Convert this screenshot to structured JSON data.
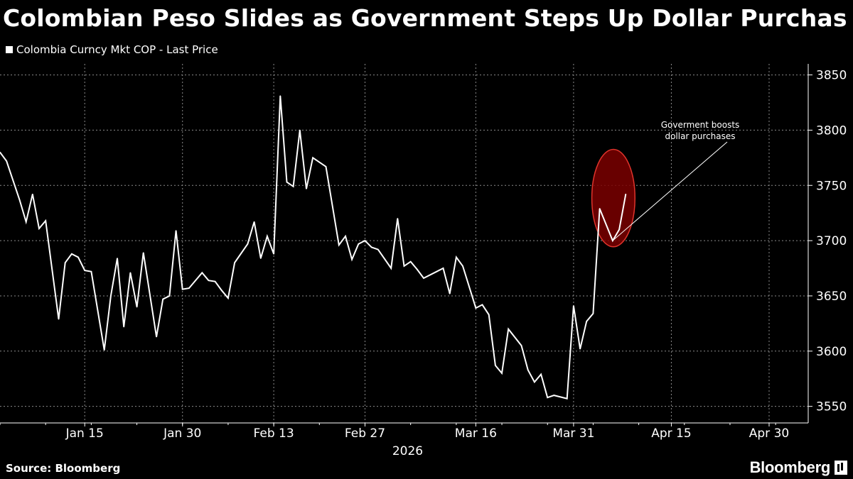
{
  "header": {
    "title": "Colombian Peso Slides as Government Steps Up Dollar Purchas"
  },
  "legend": {
    "label": "Colombia Curncy Mkt COP - Last Price",
    "swatch_color": "#ffffff"
  },
  "footer": {
    "source": "Source: Bloomberg",
    "brand": "Bloomberg"
  },
  "colors": {
    "background": "#000000",
    "line": "#ffffff",
    "grid": "#8a8a8a",
    "annotation_fill": "#7a0000",
    "annotation_stroke": "#e0342c"
  },
  "chart_data": {
    "type": "line",
    "title": "Colombian Peso Slides as Government Steps Up Dollar Purchas",
    "xlabel": "",
    "ylabel": "",
    "year_label": "2026",
    "grid": true,
    "y_axis_side": "right",
    "ylim": [
      3535,
      3860
    ],
    "xlim": [
      "2026-01-02",
      "2026-05-06"
    ],
    "y_ticks": [
      3550,
      3600,
      3650,
      3700,
      3750,
      3800,
      3850
    ],
    "x_ticks": [
      {
        "date": "2026-01-15",
        "label": "Jan 15"
      },
      {
        "date": "2026-01-30",
        "label": "Jan 30"
      },
      {
        "date": "2026-02-13",
        "label": "Feb 13"
      },
      {
        "date": "2026-02-27",
        "label": "Feb 27"
      },
      {
        "date": "2026-03-16",
        "label": "Mar 16"
      },
      {
        "date": "2026-03-31",
        "label": "Mar 31"
      },
      {
        "date": "2026-04-15",
        "label": "Apr 15"
      },
      {
        "date": "2026-04-30",
        "label": "Apr 30"
      }
    ],
    "series": [
      {
        "name": "Colombia Curncy Mkt COP - Last Price",
        "points": [
          [
            "2026-01-02",
            3780
          ],
          [
            "2026-01-03",
            3772
          ],
          [
            "2026-01-05",
            3737
          ],
          [
            "2026-01-06",
            3717
          ],
          [
            "2026-01-07",
            3742
          ],
          [
            "2026-01-08",
            3711
          ],
          [
            "2026-01-09",
            3718
          ],
          [
            "2026-01-11",
            3629
          ],
          [
            "2026-01-12",
            3680
          ],
          [
            "2026-01-13",
            3688
          ],
          [
            "2026-01-14",
            3685
          ],
          [
            "2026-01-15",
            3673
          ],
          [
            "2026-01-16",
            3672
          ],
          [
            "2026-01-18",
            3601
          ],
          [
            "2026-01-19",
            3650
          ],
          [
            "2026-01-20",
            3684
          ],
          [
            "2026-01-21",
            3622
          ],
          [
            "2026-01-22",
            3671
          ],
          [
            "2026-01-23",
            3640
          ],
          [
            "2026-01-24",
            3689
          ],
          [
            "2026-01-26",
            3613
          ],
          [
            "2026-01-27",
            3647
          ],
          [
            "2026-01-28",
            3650
          ],
          [
            "2026-01-29",
            3709
          ],
          [
            "2026-01-30",
            3656
          ],
          [
            "2026-01-31",
            3657
          ],
          [
            "2026-02-02",
            3671
          ],
          [
            "2026-02-03",
            3664
          ],
          [
            "2026-02-04",
            3663
          ],
          [
            "2026-02-05",
            3655
          ],
          [
            "2026-02-06",
            3648
          ],
          [
            "2026-02-07",
            3680
          ],
          [
            "2026-02-09",
            3697
          ],
          [
            "2026-02-10",
            3717
          ],
          [
            "2026-02-11",
            3684
          ],
          [
            "2026-02-12",
            3704
          ],
          [
            "2026-02-13",
            3688
          ],
          [
            "2026-02-14",
            3831
          ],
          [
            "2026-02-15",
            3753
          ],
          [
            "2026-02-16",
            3749
          ],
          [
            "2026-02-17",
            3800
          ],
          [
            "2026-02-18",
            3747
          ],
          [
            "2026-02-19",
            3775
          ],
          [
            "2026-02-20",
            3771
          ],
          [
            "2026-02-21",
            3767
          ],
          [
            "2026-02-23",
            3696
          ],
          [
            "2026-02-24",
            3704
          ],
          [
            "2026-02-25",
            3683
          ],
          [
            "2026-02-26",
            3697
          ],
          [
            "2026-02-27",
            3700
          ],
          [
            "2026-02-28",
            3694
          ],
          [
            "2026-03-01",
            3692
          ],
          [
            "2026-03-03",
            3675
          ],
          [
            "2026-03-04",
            3720
          ],
          [
            "2026-03-05",
            3677
          ],
          [
            "2026-03-06",
            3681
          ],
          [
            "2026-03-07",
            3674
          ],
          [
            "2026-03-08",
            3666
          ],
          [
            "2026-03-10",
            3672
          ],
          [
            "2026-03-11",
            3675
          ],
          [
            "2026-03-12",
            3652
          ],
          [
            "2026-03-13",
            3685
          ],
          [
            "2026-03-14",
            3677
          ],
          [
            "2026-03-16",
            3639
          ],
          [
            "2026-03-17",
            3642
          ],
          [
            "2026-03-18",
            3633
          ],
          [
            "2026-03-19",
            3587
          ],
          [
            "2026-03-20",
            3580
          ],
          [
            "2026-03-21",
            3620
          ],
          [
            "2026-03-23",
            3605
          ],
          [
            "2026-03-24",
            3583
          ],
          [
            "2026-03-25",
            3572
          ],
          [
            "2026-03-26",
            3579
          ],
          [
            "2026-03-27",
            3558
          ],
          [
            "2026-03-28",
            3560
          ],
          [
            "2026-03-30",
            3557
          ],
          [
            "2026-03-31",
            3641
          ],
          [
            "2026-04-01",
            3602
          ],
          [
            "2026-04-02",
            3627
          ],
          [
            "2026-04-03",
            3634
          ],
          [
            "2026-04-04",
            3729
          ],
          [
            "2026-04-06",
            3700
          ],
          [
            "2026-04-07",
            3710
          ],
          [
            "2026-04-08",
            3742
          ]
        ]
      }
    ],
    "annotations": [
      {
        "text_lines": [
          "Goverment boosts",
          "dollar purchases"
        ],
        "target": [
          "2026-04-06",
          3700
        ],
        "highlight": {
          "from": "2026-04-04",
          "to": "2026-04-08",
          "low": 3697,
          "high": 3780
        }
      }
    ]
  }
}
